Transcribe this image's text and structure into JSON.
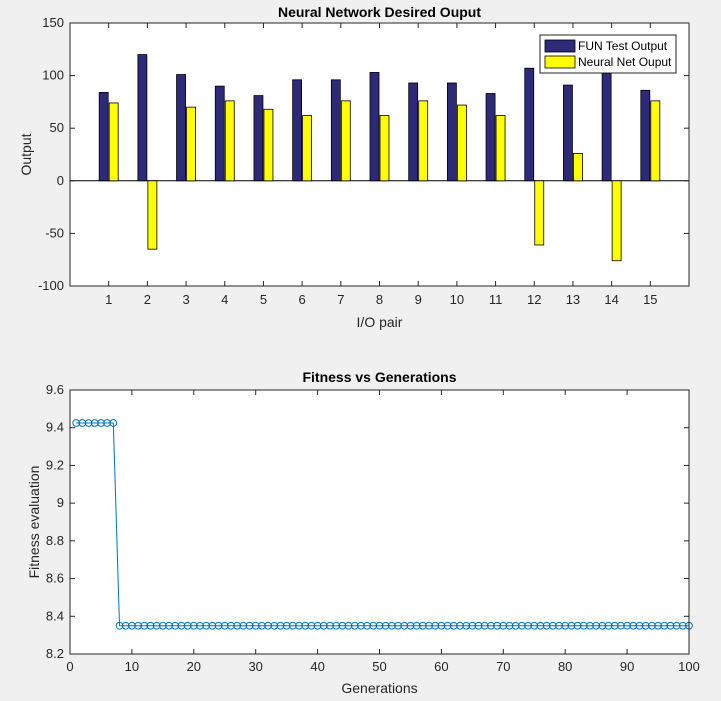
{
  "chart_data": [
    {
      "type": "bar",
      "title": "Neural Network Desired Ouput",
      "xlabel": "I/O pair",
      "ylabel": "Output",
      "ylim": [
        -100,
        150
      ],
      "yticks": [
        -100,
        -50,
        0,
        50,
        100,
        150
      ],
      "xlim": [
        0,
        16
      ],
      "categories": [
        "1",
        "2",
        "3",
        "4",
        "5",
        "6",
        "7",
        "8",
        "9",
        "10",
        "11",
        "12",
        "13",
        "14",
        "15"
      ],
      "legend_position": "top-right",
      "grid": false,
      "series": [
        {
          "name": "FUN Test Output",
          "color": "#2e2a7a",
          "values": [
            84,
            120,
            101,
            90,
            81,
            96,
            96,
            103,
            93,
            93,
            83,
            107,
            91,
            102,
            86
          ]
        },
        {
          "name": "Neural Net Ouput",
          "color": "#ffff00",
          "values": [
            74,
            -65,
            70,
            76,
            68,
            62,
            76,
            62,
            76,
            72,
            62,
            -61,
            26,
            -76,
            76
          ]
        }
      ]
    },
    {
      "type": "line",
      "title": "Fitness vs Generations",
      "xlabel": "Generations",
      "ylabel": "Fitness evaluation",
      "xlim": [
        0,
        100
      ],
      "ylim": [
        8.2,
        9.6
      ],
      "xticks": [
        0,
        10,
        20,
        30,
        40,
        50,
        60,
        70,
        80,
        90,
        100
      ],
      "yticks": [
        8.2,
        8.4,
        8.6,
        8.8,
        9,
        9.2,
        9.4,
        9.6
      ],
      "grid": false,
      "marker": "circle",
      "line_color": "#0072bd",
      "series": [
        {
          "segments": [
            {
              "from": 1,
              "to": 7,
              "value": 9.425
            },
            {
              "from": 8,
              "to": 100,
              "value": 8.35
            }
          ]
        }
      ]
    }
  ]
}
